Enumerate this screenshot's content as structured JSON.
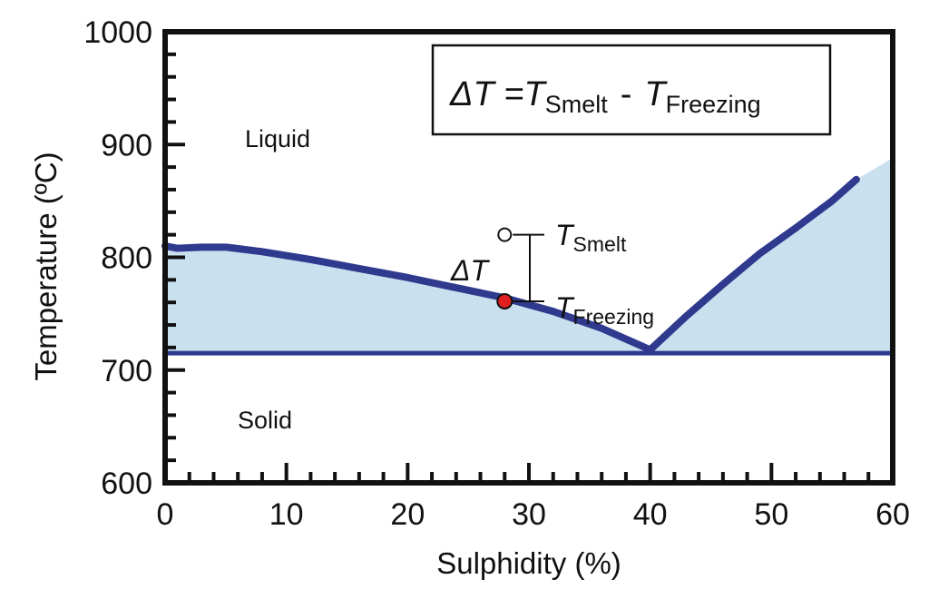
{
  "chart_data": {
    "type": "line",
    "xlabel": "Sulphidity (%)",
    "ylabel": "Temperature (ºC)",
    "xlim": [
      0,
      60
    ],
    "ylim": [
      600,
      1000
    ],
    "x_ticks": [
      "0",
      "10",
      "20",
      "30",
      "40",
      "50",
      "60"
    ],
    "y_ticks": [
      "600",
      "700",
      "800",
      "900",
      "1000"
    ],
    "grid": false,
    "colors": {
      "line": "#2f3a8f",
      "fill": "#c9e1ef",
      "point": "#e02020",
      "frame": "#111111"
    },
    "series": [
      {
        "x": [
          0,
          1,
          3,
          5,
          8,
          12,
          16,
          20,
          24,
          28,
          32,
          36,
          40
        ],
        "y": [
          810,
          808,
          809,
          809,
          805,
          798,
          790,
          782,
          773,
          764,
          752,
          737,
          718
        ]
      },
      {
        "x": [
          40,
          43,
          46,
          49,
          52,
          55,
          57
        ],
        "y": [
          718,
          748,
          776,
          803,
          826,
          850,
          869
        ]
      },
      {
        "x": [
          0,
          60
        ],
        "y": [
          715,
          715
        ]
      }
    ],
    "shaded_region_upper": {
      "x": [
        0,
        1,
        3,
        5,
        8,
        12,
        16,
        20,
        24,
        28,
        32,
        36,
        40,
        43,
        46,
        49,
        52,
        55,
        57,
        60
      ],
      "y": [
        810,
        808,
        809,
        809,
        805,
        798,
        790,
        782,
        773,
        764,
        752,
        737,
        718,
        748,
        776,
        803,
        826,
        850,
        869,
        888
      ]
    },
    "points": [
      {
        "label": "T_Smelt",
        "x": 28,
        "y": 820,
        "style": "open"
      },
      {
        "label": "T_Freezing",
        "x": 28,
        "y": 761,
        "style": "filled"
      }
    ],
    "annotations": {
      "region_liquid": "Liquid",
      "region_solid": "Solid",
      "delta_symbol": "ΔT",
      "t": "T",
      "smelt_sub": "Smelt",
      "freezing_sub": "Freezing",
      "formula_prefix": "ΔT =",
      "formula_minus": "-"
    }
  }
}
